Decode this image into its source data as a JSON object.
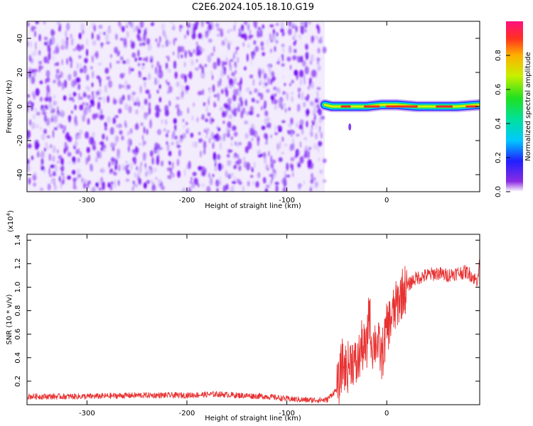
{
  "title": "C2E6.2024.105.18.10.G19",
  "chart_data": [
    {
      "type": "heatmap",
      "xlabel": "Height of straight line (km)",
      "ylabel": "Frequency (Hz)",
      "xlim": [
        -360,
        93
      ],
      "ylim": [
        -50,
        50
      ],
      "xticks": [
        -300,
        -200,
        -100,
        0
      ],
      "xtick_labels": [
        "-300",
        "-200",
        "-100",
        "0"
      ],
      "yticks": [
        -40,
        -20,
        0,
        20,
        40
      ],
      "ytick_labels": [
        "-40",
        "-20",
        "0",
        "20",
        "40"
      ],
      "noise_region_x": [
        -360,
        -62
      ],
      "signal_region_x": [
        -62,
        93
      ],
      "signal_ridge": [
        {
          "x": -62,
          "y": 1
        },
        {
          "x": -55,
          "y": 0
        },
        {
          "x": -45,
          "y": 0
        },
        {
          "x": -35,
          "y": 0
        },
        {
          "x": -20,
          "y": 0
        },
        {
          "x": -5,
          "y": 1
        },
        {
          "x": 10,
          "y": 1
        },
        {
          "x": 30,
          "y": 0
        },
        {
          "x": 50,
          "y": 0
        },
        {
          "x": 70,
          "y": 0
        },
        {
          "x": 93,
          "y": 1
        }
      ],
      "colorbar": {
        "label": "Normalized spectral amplitude",
        "range": [
          0,
          1
        ],
        "ticks": [
          0.0,
          0.2,
          0.4,
          0.6,
          0.8
        ],
        "tick_labels": [
          "0.0",
          "0.2",
          "0.4",
          "0.6",
          "0.8"
        ]
      }
    },
    {
      "type": "line",
      "xlabel": "Height of straight line (km)",
      "ylabel": "SNR (10 * v/v)",
      "y_multiplier": "(x10",
      "y_multiplier_exp": "4",
      "y_multiplier_close": ")",
      "xlim": [
        -360,
        93
      ],
      "ylim": [
        0,
        1.45
      ],
      "xticks": [
        -300,
        -200,
        -100,
        0
      ],
      "xtick_labels": [
        "-300",
        "-200",
        "-100",
        "0"
      ],
      "yticks": [
        0.2,
        0.4,
        0.6,
        0.8,
        1.0,
        1.2,
        1.4
      ],
      "ytick_labels": [
        "0.2",
        "0.4",
        "0.6",
        "0.8",
        "1.0",
        "1.2",
        "1.4"
      ],
      "series": [
        {
          "color": "#e83232",
          "x": [
            -360,
            -300,
            -250,
            -200,
            -170,
            -150,
            -120,
            -100,
            -80,
            -60,
            -48,
            -45,
            -40,
            -35,
            -30,
            -25,
            -20,
            -18,
            -15,
            -10,
            -5,
            0,
            5,
            10,
            15,
            20,
            25,
            30,
            40,
            50,
            60,
            70,
            80,
            85,
            90,
            93
          ],
          "y": [
            0.07,
            0.07,
            0.08,
            0.08,
            0.09,
            0.08,
            0.07,
            0.05,
            0.04,
            0.04,
            0.15,
            0.35,
            0.3,
            0.4,
            0.32,
            0.5,
            0.45,
            0.85,
            0.5,
            0.55,
            0.4,
            0.65,
            0.75,
            0.85,
            0.95,
            1.0,
            1.05,
            1.08,
            1.1,
            1.12,
            1.1,
            1.12,
            1.13,
            1.1,
            1.05,
            1.2
          ]
        }
      ]
    }
  ]
}
